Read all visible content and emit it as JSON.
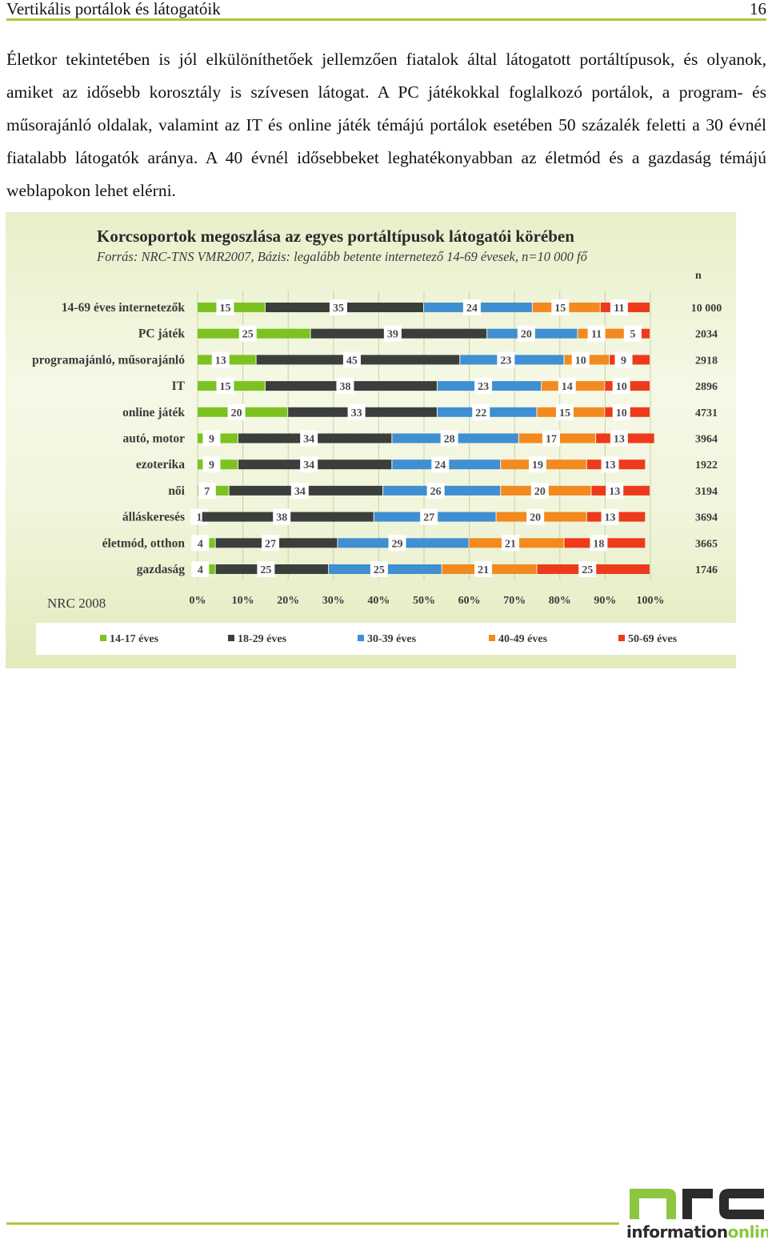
{
  "header": {
    "title": "Vertikális portálok és látogatóik",
    "page_number": "16"
  },
  "body": {
    "paragraph": "Életkor tekintetében is jól elkülöníthetőek jellemzően fiatalok által látogatott portáltípusok, és olyanok, amiket az idősebb korosztály is szívesen látogat. A PC játékokkal foglalkozó portálok, a program- és műsorajánló oldalak, valamint az IT és online játék témájú portálok esetében 50 százalék feletti a 30 évnél fiatalabb látogatók aránya. A 40 évnél idősebbeket leghatékonyabban az életmód és a gazdaság témájú weblapokon lehet elérni."
  },
  "chart_data": {
    "type": "bar",
    "orientation": "horizontal",
    "stacked": true,
    "title": "Korcsoportok megoszlása az egyes portáltípusok látogatói körében",
    "subtitle": "Forrás: NRC-TNS VMR2007, Bázis: legalább betente internetező 14-69 évesek, n=10 000 fő",
    "n_header": "n",
    "categories": [
      "14-69 éves internetezők",
      "PC játék",
      "programajánló, műsorajánló",
      "IT",
      "online játék",
      "autó, motor",
      "ezoterika",
      "női",
      "álláskeresés",
      "életmód, otthon",
      "gazdaság"
    ],
    "n_values": [
      "10 000",
      "2034",
      "2918",
      "2896",
      "4731",
      "3964",
      "1922",
      "3194",
      "3694",
      "3665",
      "1746"
    ],
    "series": [
      {
        "name": "14-17 éves",
        "color": "#7cc221",
        "values": [
          15,
          25,
          13,
          15,
          20,
          9,
          9,
          7,
          1,
          4,
          4
        ]
      },
      {
        "name": "18-29 éves",
        "color": "#3b3f3c",
        "values": [
          35,
          39,
          45,
          38,
          33,
          34,
          34,
          34,
          38,
          27,
          25
        ]
      },
      {
        "name": "30-39 éves",
        "color": "#3f8fd2",
        "values": [
          24,
          20,
          23,
          23,
          22,
          28,
          24,
          26,
          27,
          29,
          25
        ]
      },
      {
        "name": "40-49 éves",
        "color": "#f28a1f",
        "values": [
          15,
          11,
          10,
          14,
          15,
          17,
          19,
          20,
          20,
          21,
          21
        ]
      },
      {
        "name": "50-69 éves",
        "color": "#ee3a1c",
        "values": [
          11,
          5,
          9,
          10,
          10,
          13,
          13,
          13,
          13,
          18,
          25
        ]
      }
    ],
    "x_ticks": [
      "0%",
      "10%",
      "20%",
      "30%",
      "40%",
      "50%",
      "60%",
      "70%",
      "80%",
      "90%",
      "100%"
    ],
    "xlim": [
      0,
      100
    ],
    "legend_position": "bottom",
    "grid": true,
    "footnote": "NRC 2008"
  },
  "logo": {
    "part1": "information",
    "part2": "online",
    "color_green": "#8dc63f",
    "color_dark": "#2b2b2b"
  }
}
